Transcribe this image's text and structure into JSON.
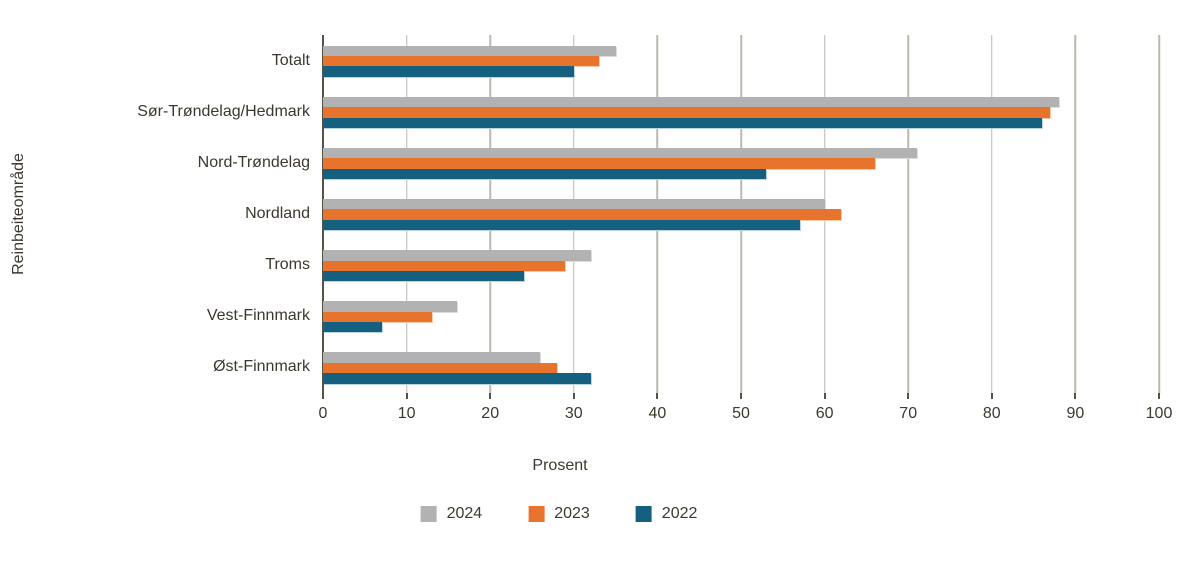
{
  "chart_data": {
    "type": "bar",
    "orientation": "horizontal",
    "title": "",
    "xlabel": "Prosent",
    "ylabel": "Reinbeiteområde",
    "xlim": [
      0,
      100
    ],
    "xticks": [
      0,
      10,
      20,
      30,
      40,
      50,
      60,
      70,
      80,
      90,
      100
    ],
    "grid": "vertical",
    "legend_position": "bottom",
    "categories": [
      "Totalt",
      "Sør-Trøndelag/Hedmark",
      "Nord-Trøndelag",
      "Nordland",
      "Troms",
      "Vest-Finnmark",
      "Øst-Finnmark"
    ],
    "series": [
      {
        "name": "2024",
        "color": "#b2b2b2",
        "edge_color": "#dcdcdc",
        "values": [
          35,
          88,
          71,
          60,
          32,
          16,
          26
        ]
      },
      {
        "name": "2023",
        "color": "#e7732d",
        "edge_color": "#f6caa6",
        "values": [
          33,
          87,
          66,
          62,
          29,
          13,
          28
        ]
      },
      {
        "name": "2022",
        "color": "#16607f",
        "edge_color": "#b9d5e3",
        "values": [
          30,
          86,
          53,
          57,
          24,
          7,
          32
        ]
      }
    ]
  },
  "style": {
    "text_color": "#3c382d",
    "axis_color": "#56524a",
    "grid_color": "#bbb8ad",
    "background": "#ffffff"
  }
}
